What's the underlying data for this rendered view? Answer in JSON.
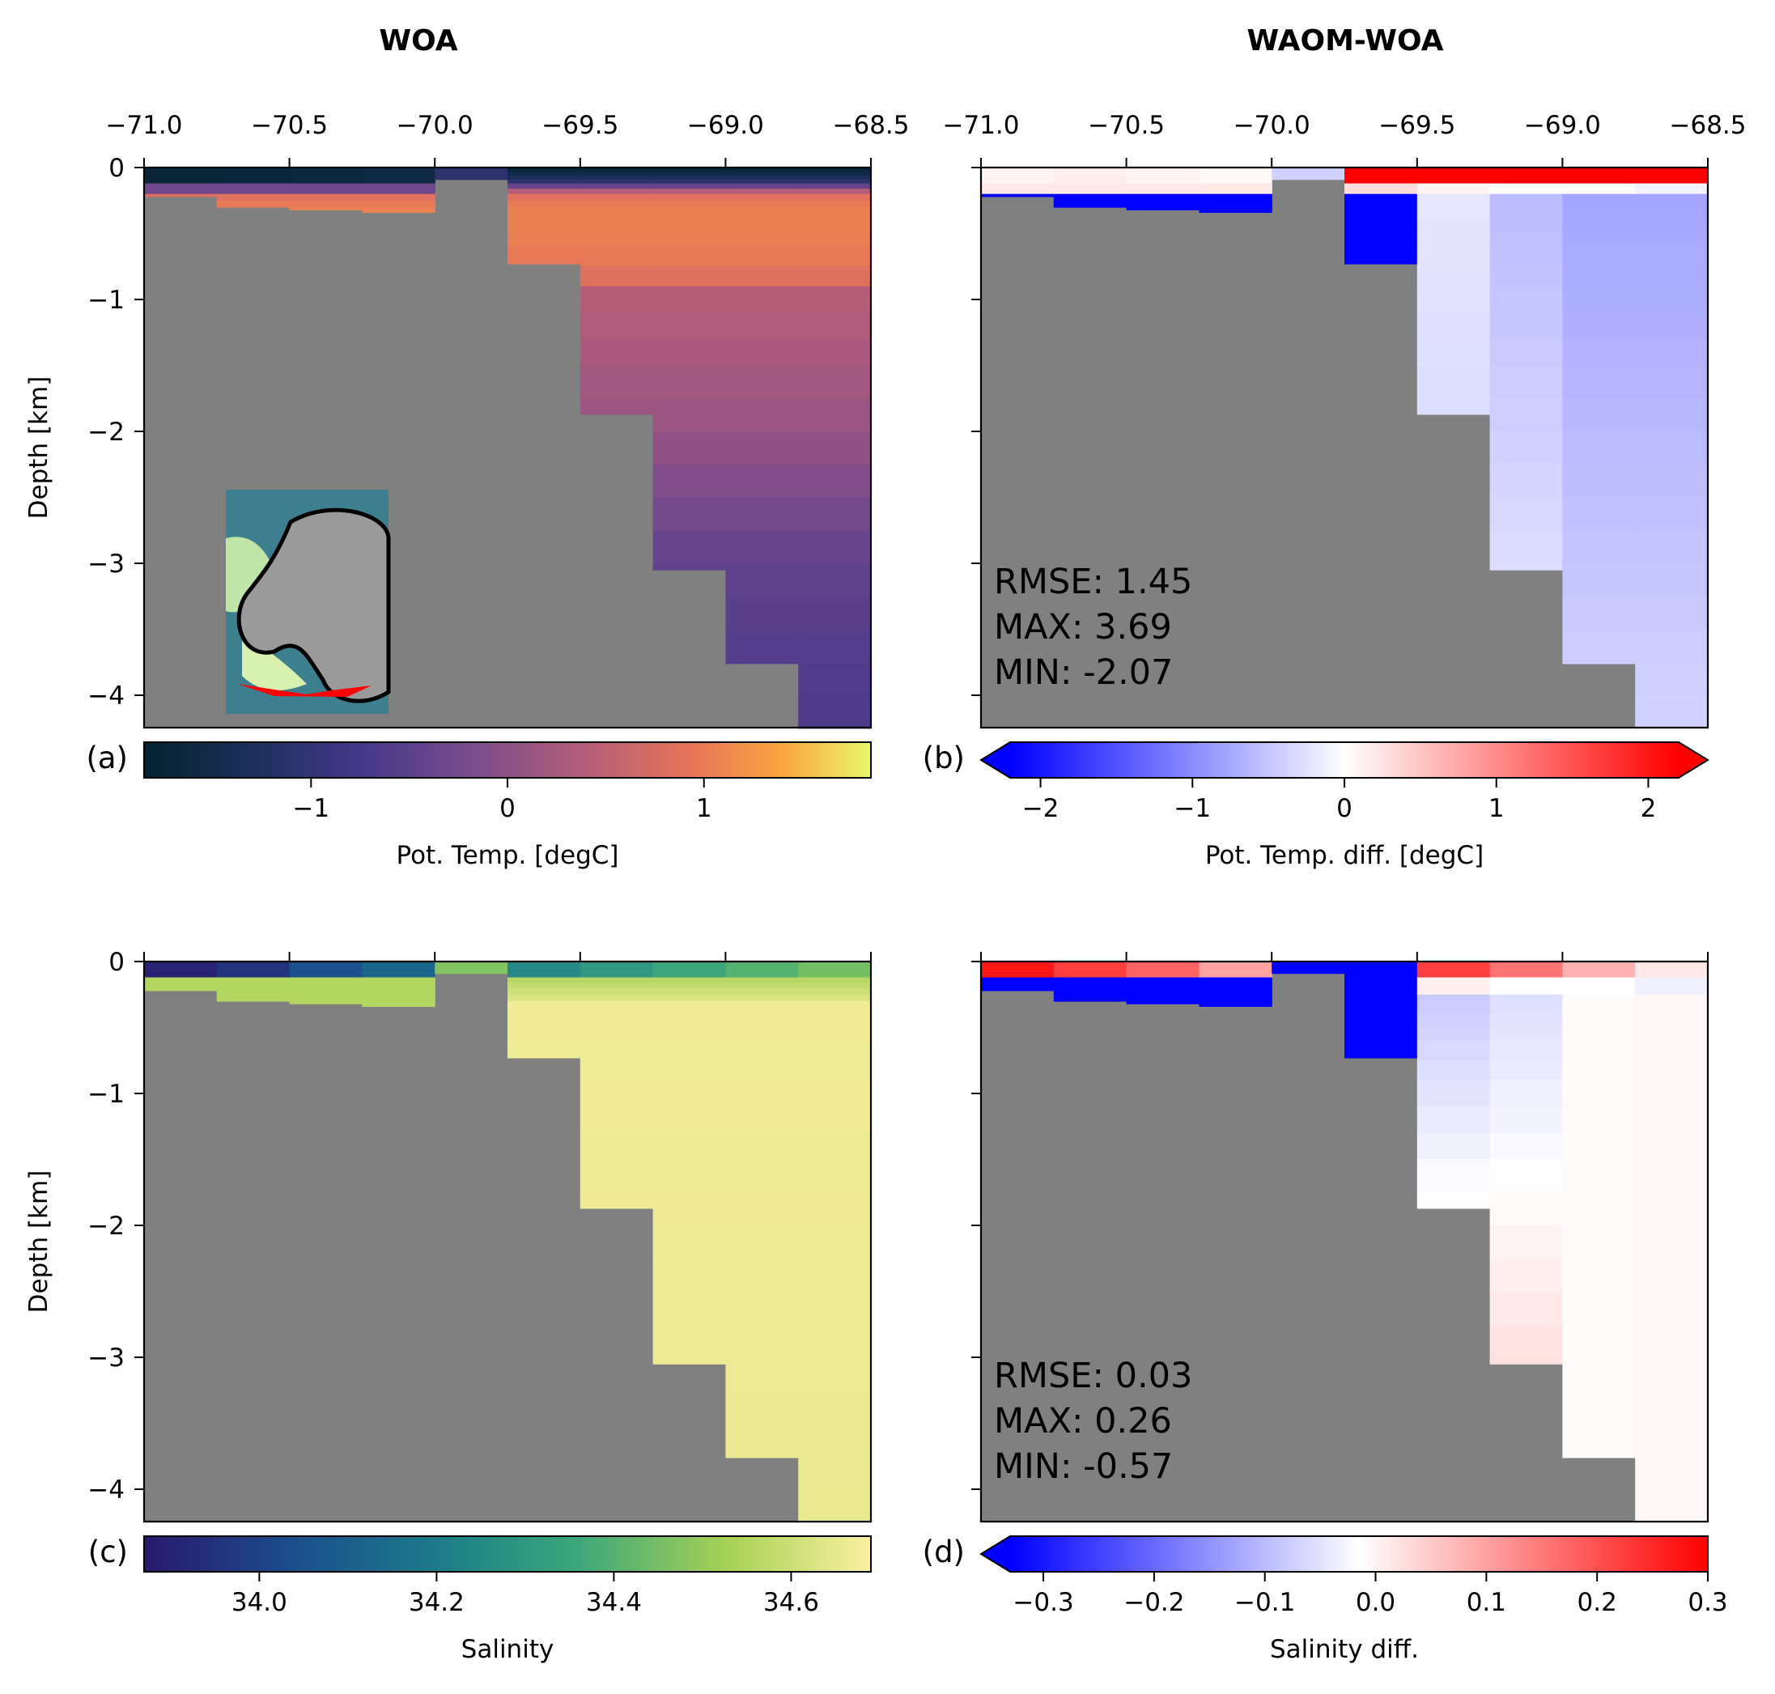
{
  "titles": {
    "left": "WOA",
    "right": "WAOM-WOA"
  },
  "chart_data": [
    {
      "id": "a",
      "type": "heatmap",
      "panel_label": "(a)",
      "title": "WOA",
      "xlabel": "",
      "ylabel": "Depth [km]",
      "xlim": [
        -71.0,
        -68.5
      ],
      "ylim": [
        -4.25,
        0
      ],
      "xticks": [
        "−71.0",
        "−70.5",
        "−70.0",
        "−69.5",
        "−69.0",
        "−68.5"
      ],
      "yticks": [
        "0",
        "−1",
        "−2",
        "−3",
        "−4"
      ],
      "columns_lon": [
        -70.875,
        -70.625,
        -70.375,
        -70.125,
        -69.875,
        -69.625,
        -69.375,
        -69.125,
        -68.875,
        -68.625
      ],
      "column_bottom_depth_km": [
        0.22,
        0.3,
        0.32,
        0.34,
        0.09,
        0.73,
        1.87,
        3.05,
        3.76,
        4.25
      ],
      "colorbar": {
        "label": "Pot. Temp. [degC]",
        "range": [
          -1.85,
          1.85
        ],
        "ticks": [
          "−1",
          "0",
          "1"
        ],
        "extend": "neither",
        "colormap": "thermal"
      },
      "profile_sample": {
        "depth_km": [
          0,
          0.1,
          0.2,
          0.3,
          0.5,
          0.8,
          1.0,
          2.0,
          3.0,
          4.0
        ],
        "pot_temp_degC": [
          -1.8,
          -1.2,
          0.8,
          1.05,
          1.05,
          0.9,
          0.4,
          0.1,
          -0.45,
          -0.65
        ]
      },
      "inset": {
        "content": "Antarctica map with transect",
        "transect_color": "#ff0000"
      }
    },
    {
      "id": "b",
      "type": "heatmap",
      "panel_label": "(b)",
      "title": "WAOM-WOA",
      "xlabel": "",
      "ylabel": "",
      "xlim": [
        -71.0,
        -68.5
      ],
      "ylim": [
        -4.25,
        0
      ],
      "xticks": [
        "−71.0",
        "−70.5",
        "−70.0",
        "−69.5",
        "−69.0",
        "−68.5"
      ],
      "columns_lon": [
        -70.875,
        -70.625,
        -70.375,
        -70.125,
        -69.875,
        -69.625,
        -69.375,
        -69.125,
        -68.875,
        -68.625
      ],
      "column_bottom_depth_km": [
        0.22,
        0.3,
        0.32,
        0.34,
        0.09,
        0.73,
        1.87,
        3.05,
        3.76,
        4.25
      ],
      "colorbar": {
        "label": "Pot. Temp. diff. [degC]",
        "range": [
          -2.2,
          2.2
        ],
        "ticks": [
          "−2",
          "−1",
          "0",
          "1",
          "2"
        ],
        "extend": "both",
        "colormap": "bwr"
      },
      "stats": {
        "rmse": "RMSE: 1.45",
        "max": "MAX:  3.69",
        "min": "MIN:  -2.07"
      }
    },
    {
      "id": "c",
      "type": "heatmap",
      "panel_label": "(c)",
      "title": "",
      "xlabel": "",
      "ylabel": "Depth [km]",
      "xlim": [
        -71.0,
        -68.5
      ],
      "ylim": [
        -4.25,
        0
      ],
      "yticks": [
        "0",
        "−1",
        "−2",
        "−3",
        "−4"
      ],
      "columns_lon": [
        -70.875,
        -70.625,
        -70.375,
        -70.125,
        -69.875,
        -69.625,
        -69.375,
        -69.125,
        -68.875,
        -68.625
      ],
      "column_bottom_depth_km": [
        0.22,
        0.3,
        0.32,
        0.34,
        0.09,
        0.73,
        1.87,
        3.05,
        3.76,
        4.25
      ],
      "colorbar": {
        "label": "Salinity",
        "range": [
          33.87,
          34.69
        ],
        "ticks": [
          "34.0",
          "34.2",
          "34.4",
          "34.6"
        ],
        "extend": "neither",
        "colormap": "haline"
      }
    },
    {
      "id": "d",
      "type": "heatmap",
      "panel_label": "(d)",
      "title": "",
      "xlabel": "",
      "ylabel": "",
      "xlim": [
        -71.0,
        -68.5
      ],
      "ylim": [
        -4.25,
        0
      ],
      "columns_lon": [
        -70.875,
        -70.625,
        -70.375,
        -70.125,
        -69.875,
        -69.625,
        -69.375,
        -69.125,
        -68.875,
        -68.625
      ],
      "column_bottom_depth_km": [
        0.22,
        0.3,
        0.32,
        0.34,
        0.09,
        0.73,
        1.87,
        3.05,
        3.76,
        4.25
      ],
      "colorbar": {
        "label": "Salinity diff.",
        "range": [
          -0.33,
          0.3
        ],
        "ticks": [
          "−0.3",
          "−0.2",
          "−0.1",
          "0.0",
          "0.1",
          "0.2",
          "0.3"
        ],
        "extend": "min",
        "colormap": "bwr"
      },
      "stats": {
        "rmse": "RMSE: 0.03",
        "max": "MAX:  0.26",
        "min": "MIN:  -0.57"
      }
    }
  ],
  "colors": {
    "land": "#808080",
    "diff_negative": "#0000ff",
    "diff_positive": "#ff0000"
  }
}
